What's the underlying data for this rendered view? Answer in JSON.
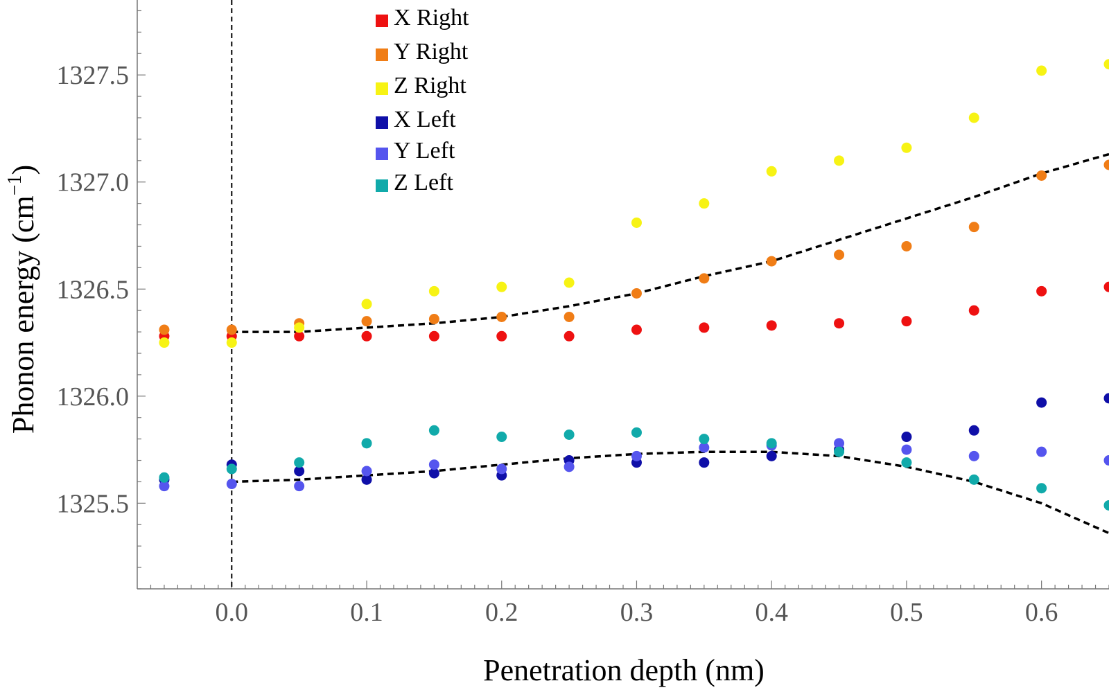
{
  "chart_data": {
    "type": "scatter",
    "xlabel": "Penetration depth (nm)",
    "ylabel_main": "Phonon energy (cm",
    "ylabel_sup": "−1",
    "ylabel_close": ")",
    "xlim": [
      -0.07,
      0.65
    ],
    "ylim": [
      1325.1,
      1327.85
    ],
    "x_ticks": [
      0.0,
      0.1,
      0.2,
      0.3,
      0.4,
      0.5,
      0.6
    ],
    "x_tick_labels": [
      "0.0",
      "0.1",
      "0.2",
      "0.3",
      "0.4",
      "0.5",
      "0.6"
    ],
    "y_ticks": [
      1325.5,
      1326.0,
      1326.5,
      1327.0,
      1327.5
    ],
    "y_tick_labels": [
      "1325.5",
      "1326.0",
      "1326.5",
      "1327.0",
      "1327.5"
    ],
    "vertical_reference_line_x": 0.0,
    "x": [
      -0.05,
      0.0,
      0.05,
      0.1,
      0.15,
      0.2,
      0.25,
      0.3,
      0.35,
      0.4,
      0.45,
      0.5,
      0.55,
      0.6,
      0.65
    ],
    "series": [
      {
        "name": "X Right",
        "color": "#ee1111",
        "values": [
          1326.28,
          1326.28,
          1326.28,
          1326.28,
          1326.28,
          1326.28,
          1326.28,
          1326.31,
          1326.32,
          1326.33,
          1326.34,
          1326.35,
          1326.4,
          1326.49,
          1326.51
        ]
      },
      {
        "name": "Y Right",
        "color": "#f07d16",
        "values": [
          1326.31,
          1326.31,
          1326.34,
          1326.35,
          1326.36,
          1326.37,
          1326.37,
          1326.48,
          1326.55,
          1326.63,
          1326.66,
          1326.7,
          1326.79,
          1327.03,
          1327.08
        ]
      },
      {
        "name": "Z Right",
        "color": "#f7f314",
        "values": [
          1326.25,
          1326.25,
          1326.32,
          1326.43,
          1326.49,
          1326.51,
          1326.53,
          1326.81,
          1326.9,
          1327.05,
          1327.1,
          1327.16,
          1327.3,
          1327.52,
          1327.55
        ]
      },
      {
        "name": "X Left",
        "color": "#0f0fa8",
        "values": [
          1325.61,
          1325.68,
          1325.65,
          1325.61,
          1325.64,
          1325.63,
          1325.7,
          1325.69,
          1325.69,
          1325.72,
          1325.75,
          1325.81,
          1325.84,
          1325.97,
          1325.99
        ]
      },
      {
        "name": "Y Left",
        "color": "#5555ee",
        "values": [
          1325.58,
          1325.59,
          1325.58,
          1325.65,
          1325.68,
          1325.66,
          1325.67,
          1325.72,
          1325.76,
          1325.77,
          1325.78,
          1325.75,
          1325.72,
          1325.74,
          1325.7
        ]
      },
      {
        "name": "Z Left",
        "color": "#11aaaa",
        "values": [
          1325.62,
          1325.66,
          1325.69,
          1325.78,
          1325.84,
          1325.81,
          1325.82,
          1325.83,
          1325.8,
          1325.78,
          1325.74,
          1325.69,
          1325.61,
          1325.57,
          1325.49
        ]
      }
    ],
    "fit_curves": [
      {
        "name": "upper fit",
        "style": "dashed",
        "x": [
          0.0,
          0.05,
          0.1,
          0.15,
          0.2,
          0.25,
          0.3,
          0.35,
          0.4,
          0.45,
          0.5,
          0.55,
          0.6,
          0.65
        ],
        "y": [
          1326.3,
          1326.3,
          1326.32,
          1326.34,
          1326.37,
          1326.42,
          1326.48,
          1326.56,
          1326.63,
          1326.73,
          1326.83,
          1326.93,
          1327.04,
          1327.13
        ]
      },
      {
        "name": "lower fit",
        "style": "dashed",
        "x": [
          0.0,
          0.05,
          0.1,
          0.15,
          0.2,
          0.25,
          0.3,
          0.35,
          0.4,
          0.45,
          0.5,
          0.55,
          0.6,
          0.65
        ],
        "y": [
          1325.6,
          1325.61,
          1325.63,
          1325.65,
          1325.68,
          1325.71,
          1325.73,
          1325.74,
          1325.74,
          1325.72,
          1325.67,
          1325.6,
          1325.5,
          1325.36
        ]
      }
    ]
  }
}
